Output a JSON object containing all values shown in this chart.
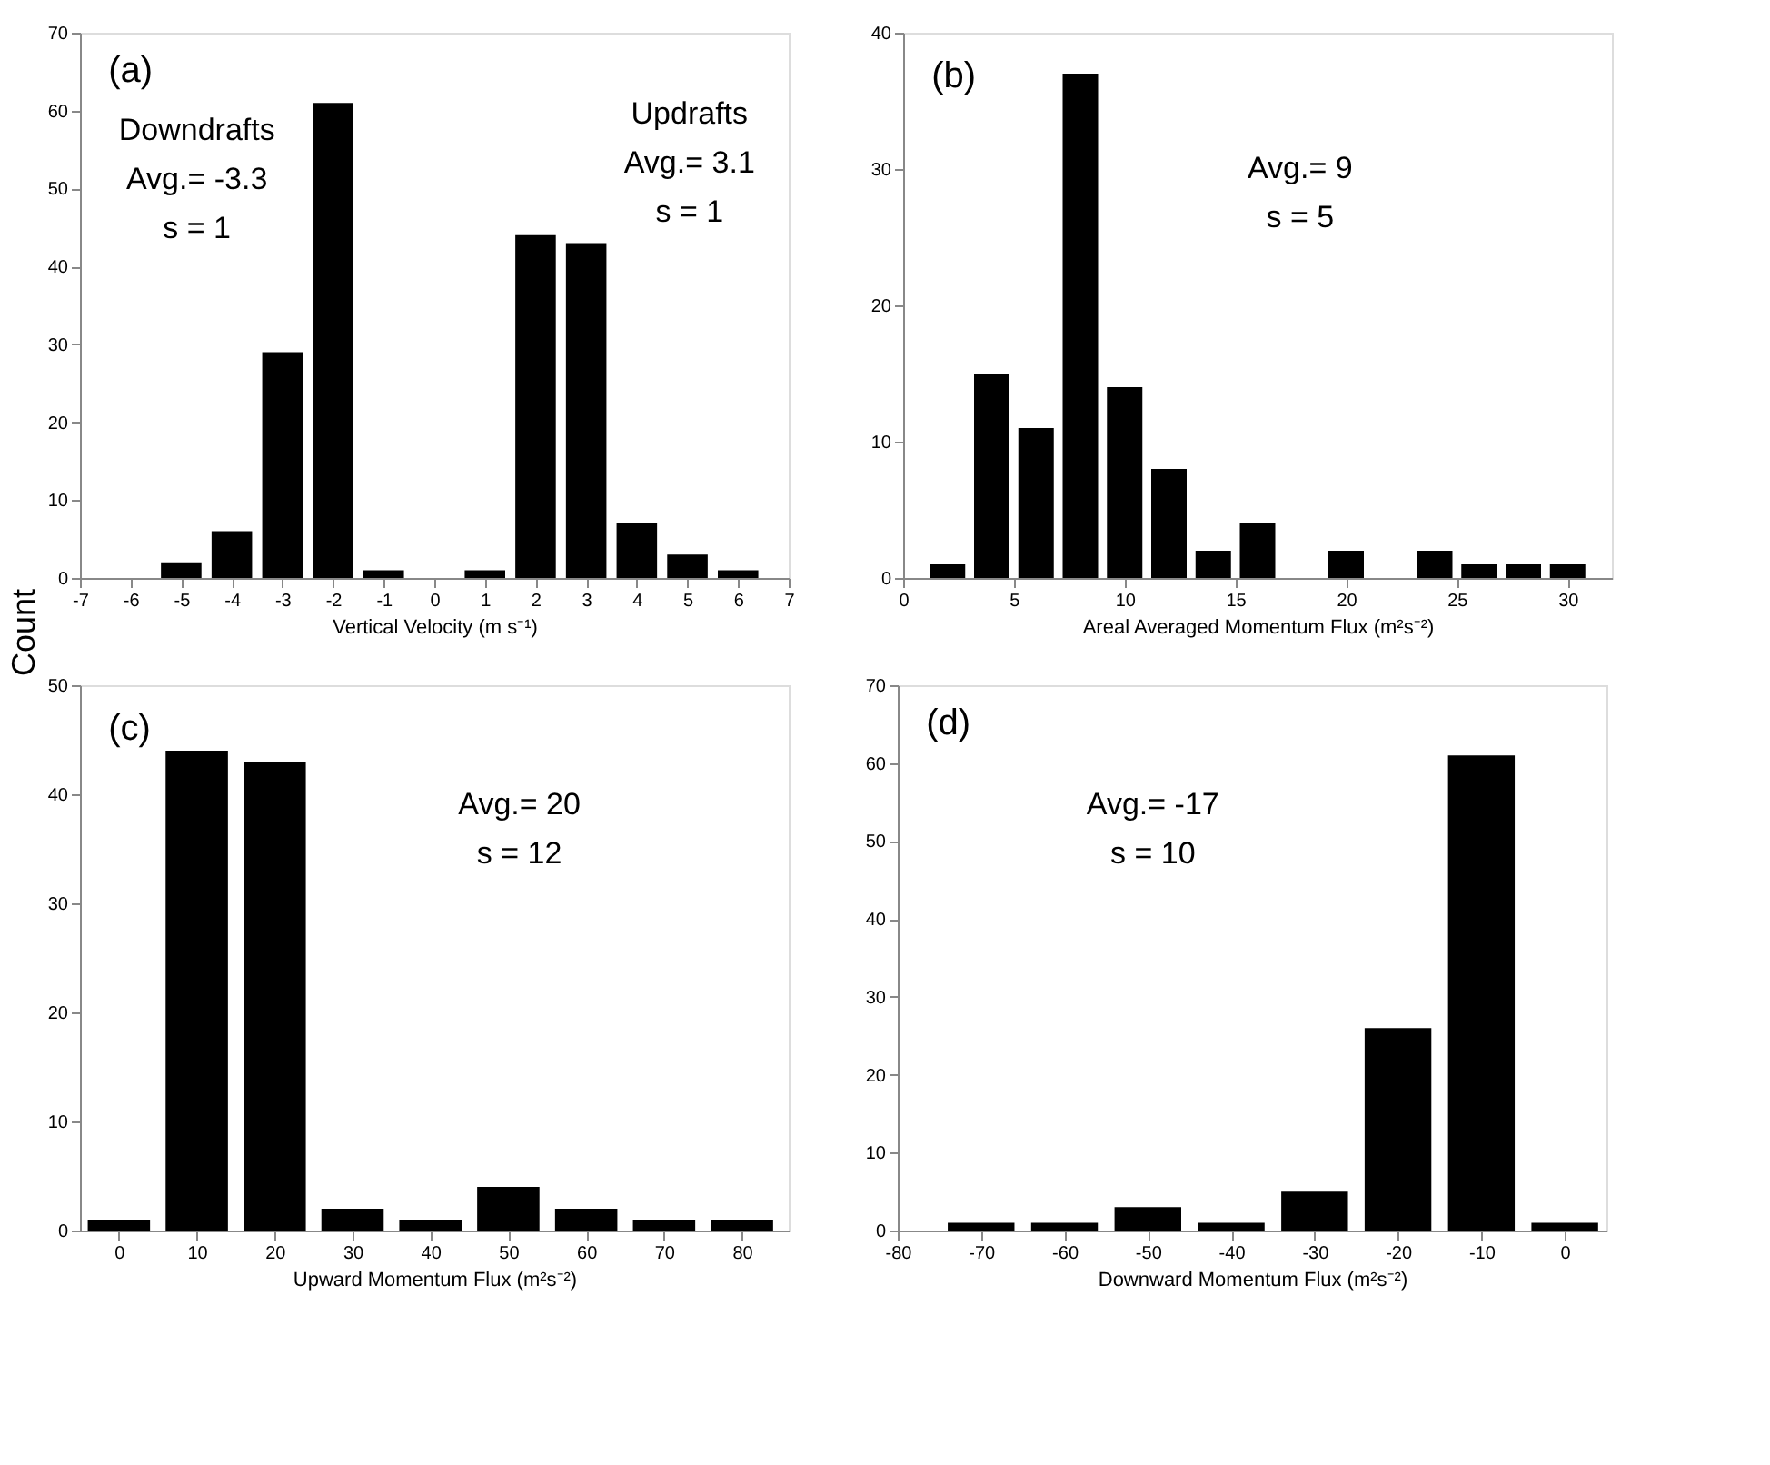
{
  "chart_data": [
    {
      "type": "bar",
      "ylabel": "Count",
      "xlabel": "Vertical Velocity (m s⁻¹)",
      "x": [
        -5,
        -4,
        -3,
        -2,
        -1,
        1,
        2,
        3,
        4,
        5,
        6
      ],
      "values": [
        2,
        6,
        29,
        61,
        1,
        1,
        44,
        43,
        7,
        3,
        1
      ],
      "color": "#000000",
      "xlim": [
        -7,
        7
      ],
      "xticks": [
        -7,
        -6,
        -5,
        -4,
        -3,
        -2,
        -1,
        0,
        1,
        2,
        3,
        4,
        5,
        6,
        7
      ],
      "ylim": [
        0,
        70
      ],
      "yticks": [
        0,
        10,
        20,
        30,
        40,
        50,
        60,
        70
      ],
      "grid": false,
      "annotations": [
        "(a)",
        "Downdrafts",
        "Avg.= -3.3",
        "s = 1",
        "Updrafts",
        "Avg.= 3.1",
        "s = 1"
      ]
    },
    {
      "type": "bar",
      "xlabel": "Areal Averaged Momentum Flux (m²s⁻²)",
      "x": [
        2,
        4,
        6,
        8,
        10,
        12,
        14,
        16,
        20,
        24,
        26,
        28,
        30
      ],
      "values": [
        1,
        15,
        11,
        37,
        14,
        8,
        2,
        4,
        2,
        2,
        1,
        1,
        1
      ],
      "color": "#000000",
      "xlim": [
        0,
        32
      ],
      "xticks": [
        0,
        5,
        10,
        15,
        20,
        25,
        30
      ],
      "ylim": [
        0,
        40
      ],
      "yticks": [
        0,
        10,
        20,
        30,
        40
      ],
      "grid": false,
      "annotations": [
        "(b)",
        "Avg.= 9",
        "s = 5"
      ]
    },
    {
      "type": "bar",
      "xlabel": "Upward Momentum Flux (m²s⁻²)",
      "x": [
        0,
        10,
        20,
        30,
        40,
        50,
        60,
        70,
        80
      ],
      "values": [
        1,
        44,
        43,
        2,
        1,
        4,
        2,
        1,
        1
      ],
      "color": "#000000",
      "xlim": [
        -5,
        86
      ],
      "xticks": [
        0,
        10,
        20,
        30,
        40,
        50,
        60,
        70,
        80
      ],
      "ylim": [
        0,
        50
      ],
      "yticks": [
        0,
        10,
        20,
        30,
        40,
        50
      ],
      "grid": false,
      "annotations": [
        "(c)",
        "Avg.= 20",
        "s = 12"
      ]
    },
    {
      "type": "bar",
      "xlabel": "Downward Momentum Flux (m²s⁻²)",
      "x": [
        -70,
        -60,
        -50,
        -40,
        -30,
        -20,
        -10,
        0
      ],
      "values": [
        1,
        1,
        3,
        1,
        5,
        26,
        61,
        1
      ],
      "color": "#000000",
      "xlim": [
        -80,
        5
      ],
      "xticks": [
        -80,
        -70,
        -60,
        -50,
        -40,
        -30,
        -20,
        -10,
        0
      ],
      "ylim": [
        0,
        70
      ],
      "yticks": [
        0,
        10,
        20,
        30,
        40,
        50,
        60,
        70
      ],
      "grid": false,
      "annotations": [
        "(d)",
        "Avg.= -17",
        "s = 10"
      ]
    }
  ]
}
